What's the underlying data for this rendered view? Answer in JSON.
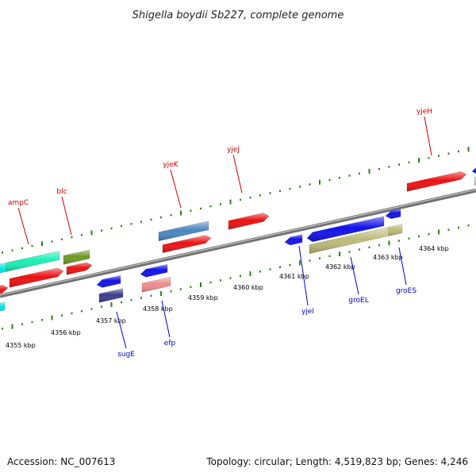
{
  "title": "Shigella boydii Sb227, complete genome",
  "footer": {
    "accession": "Accession: NC_007613",
    "summary": "Topology: circular; Length: 4,519,823 bp; Genes: 4,246"
  },
  "colors": {
    "backbone": "#8a8a8a",
    "tick": "#2e7d1e",
    "forward_label": "#cc0000",
    "reverse_label": "#0000cc"
  },
  "scale_labels": [
    "4355 kbp",
    "4356 kbp",
    "4357 kbp",
    "4358 kbp",
    "4359 kbp",
    "4360 kbp",
    "4361 kbp",
    "4362 kbp",
    "4363 kbp",
    "4364 kbp"
  ],
  "forward_labels": [
    "ampC",
    "blc",
    "yjeK",
    "yjeJ",
    "yjeH"
  ],
  "reverse_labels": [
    "sugE",
    "efp",
    "yjeI",
    "groEL",
    "groES"
  ],
  "feature_colors": {
    "red": "#ee1111",
    "blue": "#1111ee",
    "cyan": "#00e5e5",
    "aqua": "#19f0b4",
    "olive": "#6f9a26",
    "steel": "#4a86c0",
    "navy": "#3c3c8c",
    "pink": "#f08c8c",
    "khaki": "#bdbb78",
    "gray": "#cfcfcf"
  }
}
